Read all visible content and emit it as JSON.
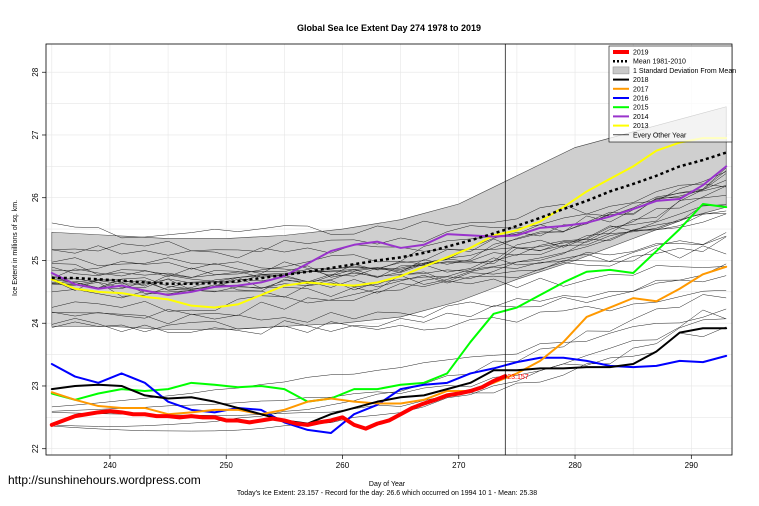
{
  "chart_data": {
    "type": "line",
    "title": "Global Sea Ice Extent Day 274 1978 to 2019",
    "xlabel": "Day of Year",
    "ylabel": "Ice Extent in millions of sq. km.",
    "xlim": [
      234.5,
      293.5
    ],
    "ylim": [
      21.9,
      28.45
    ],
    "x_ticks": [
      240,
      250,
      260,
      270,
      280,
      290
    ],
    "y_ticks": [
      22,
      23,
      24,
      25,
      26,
      27,
      28
    ],
    "grid": true,
    "legend_position": "top-right",
    "vertical_marker_day": 274,
    "point_label": {
      "text": "23.157",
      "x": 274,
      "y": 23.157,
      "color": "#ff0000"
    },
    "footer": "Today's Ice Extent: 23.157  - Record for the day: 26.6 which occurred on 1994 10 1  - Mean: 25.38",
    "watermark": "http://sunshinehours.wordpress.com",
    "legend": [
      {
        "label": "2019",
        "color": "#ff0000",
        "style": "thick"
      },
      {
        "label": "Mean 1981-2010",
        "color": "#000000",
        "style": "dotted"
      },
      {
        "label": "1 Standard Deviation From Mean",
        "color": "#c8c8c8",
        "style": "box"
      },
      {
        "label": "2018",
        "color": "#000000",
        "style": "solid"
      },
      {
        "label": "2017",
        "color": "#ff9900",
        "style": "solid"
      },
      {
        "label": "2016",
        "color": "#0000ff",
        "style": "solid"
      },
      {
        "label": "2015",
        "color": "#00ff00",
        "style": "solid"
      },
      {
        "label": "2014",
        "color": "#9933cc",
        "style": "solid"
      },
      {
        "label": "2013",
        "color": "#ffff00",
        "style": "solid"
      },
      {
        "label": "Every Other Year",
        "color": "#000000",
        "style": "thin"
      }
    ],
    "band": {
      "x": [
        235,
        240,
        245,
        250,
        255,
        260,
        265,
        270,
        275,
        280,
        285,
        290,
        293
      ],
      "upper": [
        25.45,
        25.4,
        25.35,
        25.35,
        25.4,
        25.5,
        25.65,
        25.9,
        26.35,
        26.8,
        27.05,
        27.3,
        27.45
      ],
      "lower": [
        23.95,
        23.95,
        23.9,
        23.9,
        23.95,
        24.0,
        24.1,
        24.35,
        24.7,
        25.0,
        25.35,
        25.7,
        25.85
      ]
    },
    "series": [
      {
        "name": "2019",
        "color": "#ff0000",
        "x": [
          235,
          236,
          237,
          238,
          239,
          240,
          241,
          242,
          243,
          244,
          245,
          246,
          247,
          248,
          249,
          250,
          251,
          252,
          253,
          254,
          255,
          256,
          257,
          258,
          259,
          260,
          261,
          262,
          263,
          264,
          265,
          266,
          267,
          268,
          269,
          270,
          271,
          272,
          273,
          274
        ],
        "y": [
          22.38,
          22.45,
          22.52,
          22.55,
          22.58,
          22.6,
          22.58,
          22.55,
          22.55,
          22.52,
          22.52,
          22.5,
          22.52,
          22.5,
          22.5,
          22.45,
          22.45,
          22.42,
          22.45,
          22.48,
          22.45,
          22.4,
          22.38,
          22.42,
          22.45,
          22.5,
          22.38,
          22.32,
          22.4,
          22.45,
          22.55,
          22.65,
          22.72,
          22.78,
          22.85,
          22.88,
          22.92,
          22.98,
          23.08,
          23.157
        ]
      },
      {
        "name": "Mean 1981-2010",
        "color": "#000000",
        "x": [
          235,
          237,
          239,
          241,
          243,
          245,
          247,
          249,
          251,
          253,
          255,
          257,
          259,
          261,
          263,
          265,
          267,
          269,
          271,
          273,
          275,
          277,
          279,
          281,
          283,
          285,
          287,
          289,
          291,
          293
        ],
        "y": [
          24.72,
          24.72,
          24.7,
          24.68,
          24.65,
          24.63,
          24.63,
          24.64,
          24.67,
          24.72,
          24.77,
          24.82,
          24.88,
          24.94,
          25.0,
          25.05,
          25.12,
          25.22,
          25.32,
          25.43,
          25.55,
          25.68,
          25.82,
          25.95,
          26.1,
          26.22,
          26.35,
          26.5,
          26.6,
          26.72
        ]
      },
      {
        "name": "2018",
        "color": "#000000",
        "x": [
          235,
          237,
          239,
          241,
          243,
          245,
          247,
          249,
          251,
          253,
          255,
          257,
          259,
          261,
          263,
          265,
          267,
          269,
          271,
          273,
          275,
          277,
          279,
          281,
          283,
          285,
          287,
          289,
          291,
          293
        ],
        "y": [
          22.95,
          23.0,
          23.02,
          23.0,
          22.85,
          22.8,
          22.82,
          22.75,
          22.65,
          22.55,
          22.45,
          22.4,
          22.55,
          22.65,
          22.75,
          22.82,
          22.85,
          22.95,
          23.05,
          23.25,
          23.25,
          23.28,
          23.28,
          23.3,
          23.3,
          23.35,
          23.55,
          23.85,
          23.92,
          23.92
        ]
      },
      {
        "name": "2017",
        "color": "#ff9900",
        "x": [
          235,
          237,
          239,
          241,
          243,
          245,
          247,
          249,
          251,
          253,
          255,
          257,
          259,
          261,
          263,
          265,
          267,
          269,
          271,
          273,
          275,
          277,
          279,
          281,
          283,
          285,
          287,
          289,
          291,
          293
        ],
        "y": [
          22.9,
          22.78,
          22.68,
          22.65,
          22.65,
          22.55,
          22.58,
          22.62,
          22.62,
          22.55,
          22.62,
          22.75,
          22.8,
          22.75,
          22.72,
          22.72,
          22.78,
          22.92,
          22.92,
          23.05,
          23.2,
          23.4,
          23.7,
          24.1,
          24.25,
          24.4,
          24.35,
          24.55,
          24.78,
          24.9
        ]
      },
      {
        "name": "2016",
        "color": "#0000ff",
        "x": [
          235,
          237,
          239,
          241,
          243,
          245,
          247,
          249,
          251,
          253,
          255,
          257,
          259,
          261,
          263,
          265,
          267,
          269,
          271,
          273,
          275,
          277,
          279,
          281,
          283,
          285,
          287,
          289,
          291,
          293
        ],
        "y": [
          23.35,
          23.15,
          23.05,
          23.2,
          23.05,
          22.75,
          22.62,
          22.58,
          22.65,
          22.62,
          22.42,
          22.3,
          22.25,
          22.55,
          22.7,
          22.95,
          23.02,
          23.05,
          23.2,
          23.28,
          23.38,
          23.45,
          23.45,
          23.4,
          23.32,
          23.3,
          23.32,
          23.4,
          23.38,
          23.48
        ]
      },
      {
        "name": "2015",
        "color": "#00ff00",
        "x": [
          235,
          237,
          239,
          241,
          243,
          245,
          247,
          249,
          251,
          253,
          255,
          257,
          259,
          261,
          263,
          265,
          267,
          269,
          271,
          273,
          275,
          277,
          279,
          281,
          283,
          285,
          287,
          289,
          291,
          293
        ],
        "y": [
          22.88,
          22.78,
          22.88,
          22.95,
          22.92,
          22.95,
          23.05,
          23.02,
          22.98,
          23.0,
          22.95,
          22.75,
          22.8,
          22.95,
          22.95,
          23.02,
          23.05,
          23.2,
          23.7,
          24.15,
          24.25,
          24.45,
          24.65,
          24.82,
          24.85,
          24.8,
          25.15,
          25.5,
          25.9,
          25.85
        ]
      },
      {
        "name": "2014",
        "color": "#9933cc",
        "x": [
          235,
          237,
          239,
          241,
          243,
          245,
          247,
          249,
          251,
          253,
          255,
          257,
          259,
          261,
          263,
          265,
          267,
          269,
          271,
          273,
          275,
          277,
          279,
          281,
          283,
          285,
          287,
          289,
          291,
          293
        ],
        "y": [
          24.8,
          24.62,
          24.55,
          24.6,
          24.52,
          24.45,
          24.5,
          24.58,
          24.6,
          24.65,
          24.75,
          24.95,
          25.15,
          25.25,
          25.3,
          25.2,
          25.25,
          25.42,
          25.4,
          25.38,
          25.4,
          25.52,
          25.55,
          25.6,
          25.7,
          25.82,
          25.95,
          25.98,
          26.2,
          26.5
        ]
      },
      {
        "name": "2013",
        "color": "#ffff00",
        "x": [
          235,
          237,
          239,
          241,
          243,
          245,
          247,
          249,
          251,
          253,
          255,
          257,
          259,
          261,
          263,
          265,
          267,
          269,
          271,
          273,
          275,
          277,
          279,
          281,
          283,
          285,
          287,
          289,
          291,
          293
        ],
        "y": [
          24.7,
          24.55,
          24.5,
          24.48,
          24.42,
          24.38,
          24.28,
          24.25,
          24.3,
          24.45,
          24.6,
          24.65,
          24.62,
          24.6,
          24.65,
          24.75,
          24.9,
          25.05,
          25.2,
          25.4,
          25.48,
          25.62,
          25.85,
          26.1,
          26.3,
          26.5,
          26.75,
          26.88,
          26.95,
          26.95
        ]
      }
    ]
  }
}
